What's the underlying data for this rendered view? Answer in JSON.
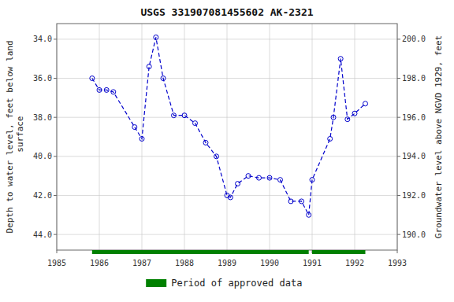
{
  "chart_data": {
    "type": "line",
    "title": "USGS 331907081455602 AK-2321",
    "y_label": "Depth to water level, feet below land\n surface",
    "y2_label": "Groundwater level above NGVD 1929, feet",
    "x": [
      1985.83,
      1986.0,
      1986.17,
      1986.33,
      1986.83,
      1987.0,
      1987.17,
      1987.33,
      1987.5,
      1987.75,
      1988.0,
      1988.25,
      1988.5,
      1988.75,
      1989.0,
      1989.08,
      1989.25,
      1989.5,
      1989.75,
      1990.0,
      1990.25,
      1990.5,
      1990.75,
      1990.92,
      1991.0,
      1991.42,
      1991.5,
      1991.67,
      1991.83,
      1992.0,
      1992.25
    ],
    "series": [
      {
        "color": "#0000CC",
        "marker": "circle",
        "line_style": "dashed",
        "values": [
          36.0,
          36.6,
          36.6,
          36.7,
          38.5,
          39.1,
          35.4,
          33.9,
          36.0,
          37.9,
          37.9,
          38.3,
          39.3,
          40.0,
          42.0,
          42.1,
          41.4,
          41.0,
          41.1,
          41.1,
          41.2,
          42.3,
          42.3,
          43.0,
          41.2,
          39.1,
          38.0,
          35.0,
          38.1,
          37.8,
          37.3
        ]
      }
    ],
    "xlim": [
      1985,
      1993
    ],
    "xticks": [
      1985,
      1986,
      1987,
      1988,
      1989,
      1990,
      1991,
      1992,
      1993
    ],
    "ylim": [
      44.8,
      33.2
    ],
    "yticks": [
      {
        "value": 34,
        "label": "34.0"
      },
      {
        "value": 36,
        "label": "36.0"
      },
      {
        "value": 38,
        "label": "38.0"
      },
      {
        "value": 40,
        "label": "40.0"
      },
      {
        "value": 42,
        "label": "42.0"
      },
      {
        "value": 44,
        "label": "44.0"
      }
    ],
    "y2lim": [
      189.2,
      200.8
    ],
    "y2ticks": [
      {
        "value": 190,
        "label": "190.0"
      },
      {
        "value": 192,
        "label": "192.0"
      },
      {
        "value": 194,
        "label": "194.0"
      },
      {
        "value": 196,
        "label": "196.0"
      },
      {
        "value": 198,
        "label": "198.0"
      },
      {
        "value": 200,
        "label": "200.0"
      }
    ],
    "periods": [
      {
        "name": "Period of approved data",
        "color": "#008000",
        "spans": [
          [
            1985.83,
            1990.92
          ],
          [
            1991.0,
            1992.25
          ]
        ]
      }
    ],
    "grid": true,
    "legend": "bottom"
  }
}
